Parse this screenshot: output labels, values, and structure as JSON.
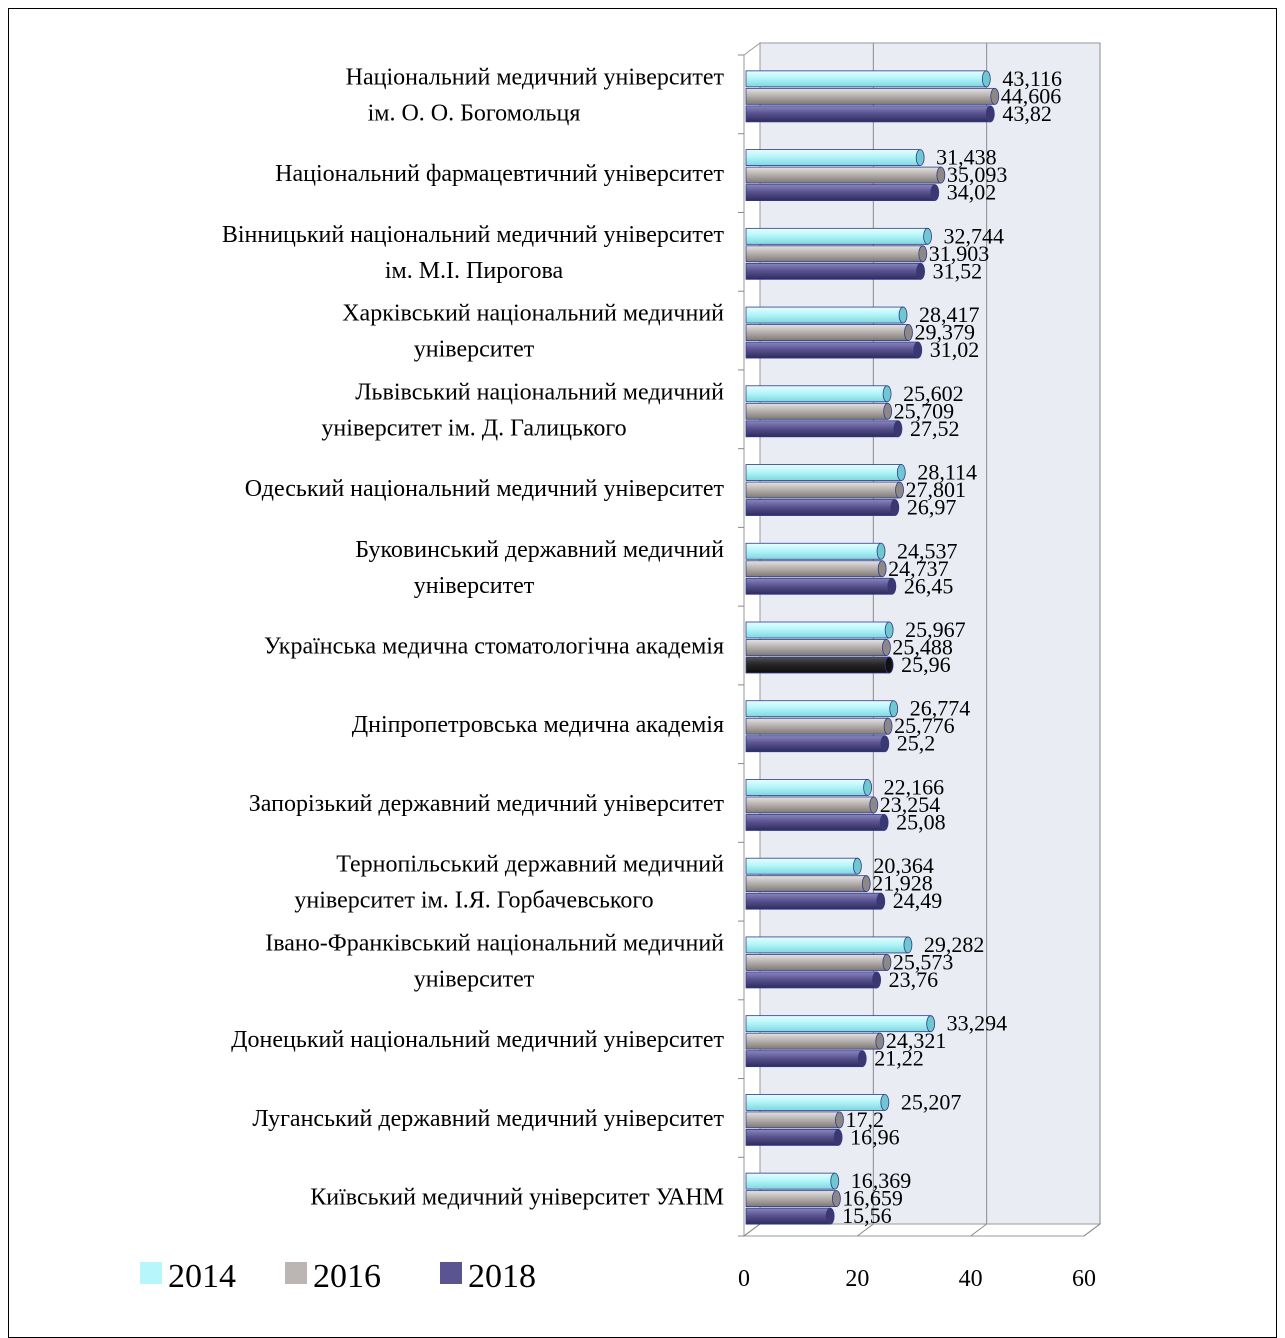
{
  "chart_data": {
    "type": "bar",
    "orientation": "horizontal",
    "xlim": [
      0,
      60
    ],
    "x_ticks": [
      "0",
      "20",
      "40",
      "60"
    ],
    "grid": true,
    "legend_position": "bottom-left",
    "categories": [
      {
        "lines": [
          "Національний медичний університет",
          "ім. О. О. Богомольця"
        ],
        "values": [
          "43,116",
          "44,606",
          "43,82"
        ]
      },
      {
        "lines": [
          "Національний фармацевтичний університет"
        ],
        "values": [
          "31,438",
          "35,093",
          "34,02"
        ]
      },
      {
        "lines": [
          "Вінницький національний медичний університет",
          "ім. М.І. Пирогова"
        ],
        "values": [
          "32,744",
          "31,903",
          "31,52"
        ]
      },
      {
        "lines": [
          "Харківський національний медичний",
          "університет"
        ],
        "values": [
          "28,417",
          "29,379",
          "31,02"
        ]
      },
      {
        "lines": [
          "Львівський національний медичний",
          "університет ім. Д. Галицького"
        ],
        "values": [
          "25,602",
          "25,709",
          "27,52"
        ]
      },
      {
        "lines": [
          "Одеський національний медичний університет"
        ],
        "values": [
          "28,114",
          "27,801",
          "26,97"
        ]
      },
      {
        "lines": [
          "Буковинський державний медичний",
          "університет"
        ],
        "values": [
          "24,537",
          "24,737",
          "26,45"
        ]
      },
      {
        "lines": [
          "Українська медична стоматологічна академія"
        ],
        "values": [
          "25,967",
          "25,488",
          "25,96"
        ],
        "highlight_2018": true
      },
      {
        "lines": [
          "Дніпропетровська медична академія"
        ],
        "values": [
          "26,774",
          "25,776",
          "25,2"
        ]
      },
      {
        "lines": [
          "Запорізький державний медичний університет"
        ],
        "values": [
          "22,166",
          "23,254",
          "25,08"
        ]
      },
      {
        "lines": [
          "Тернопільський державний медичний",
          "університет ім. І.Я. Горбачевського"
        ],
        "values": [
          "20,364",
          "21,928",
          "24,49"
        ]
      },
      {
        "lines": [
          "Івано-Франківський національний медичний",
          "університет"
        ],
        "values": [
          "29,282",
          "25,573",
          "23,76"
        ]
      },
      {
        "lines": [
          "Донецький національний медичний університет"
        ],
        "values": [
          "33,294",
          "24,321",
          "21,22"
        ]
      },
      {
        "lines": [
          "Луганський державний медичний університет"
        ],
        "values": [
          "25,207",
          "17,2",
          "16,96"
        ]
      },
      {
        "lines": [
          "Київський медичний університет УАНМ"
        ],
        "values": [
          "16,369",
          "16,659",
          "15,56"
        ]
      }
    ],
    "series": [
      {
        "name": "2014",
        "color": "#b7f7fb"
      },
      {
        "name": "2016",
        "color": "#bbb6b3"
      },
      {
        "name": "2018",
        "color": "#5a5490",
        "highlight_color": "#2a2a2a"
      }
    ]
  }
}
